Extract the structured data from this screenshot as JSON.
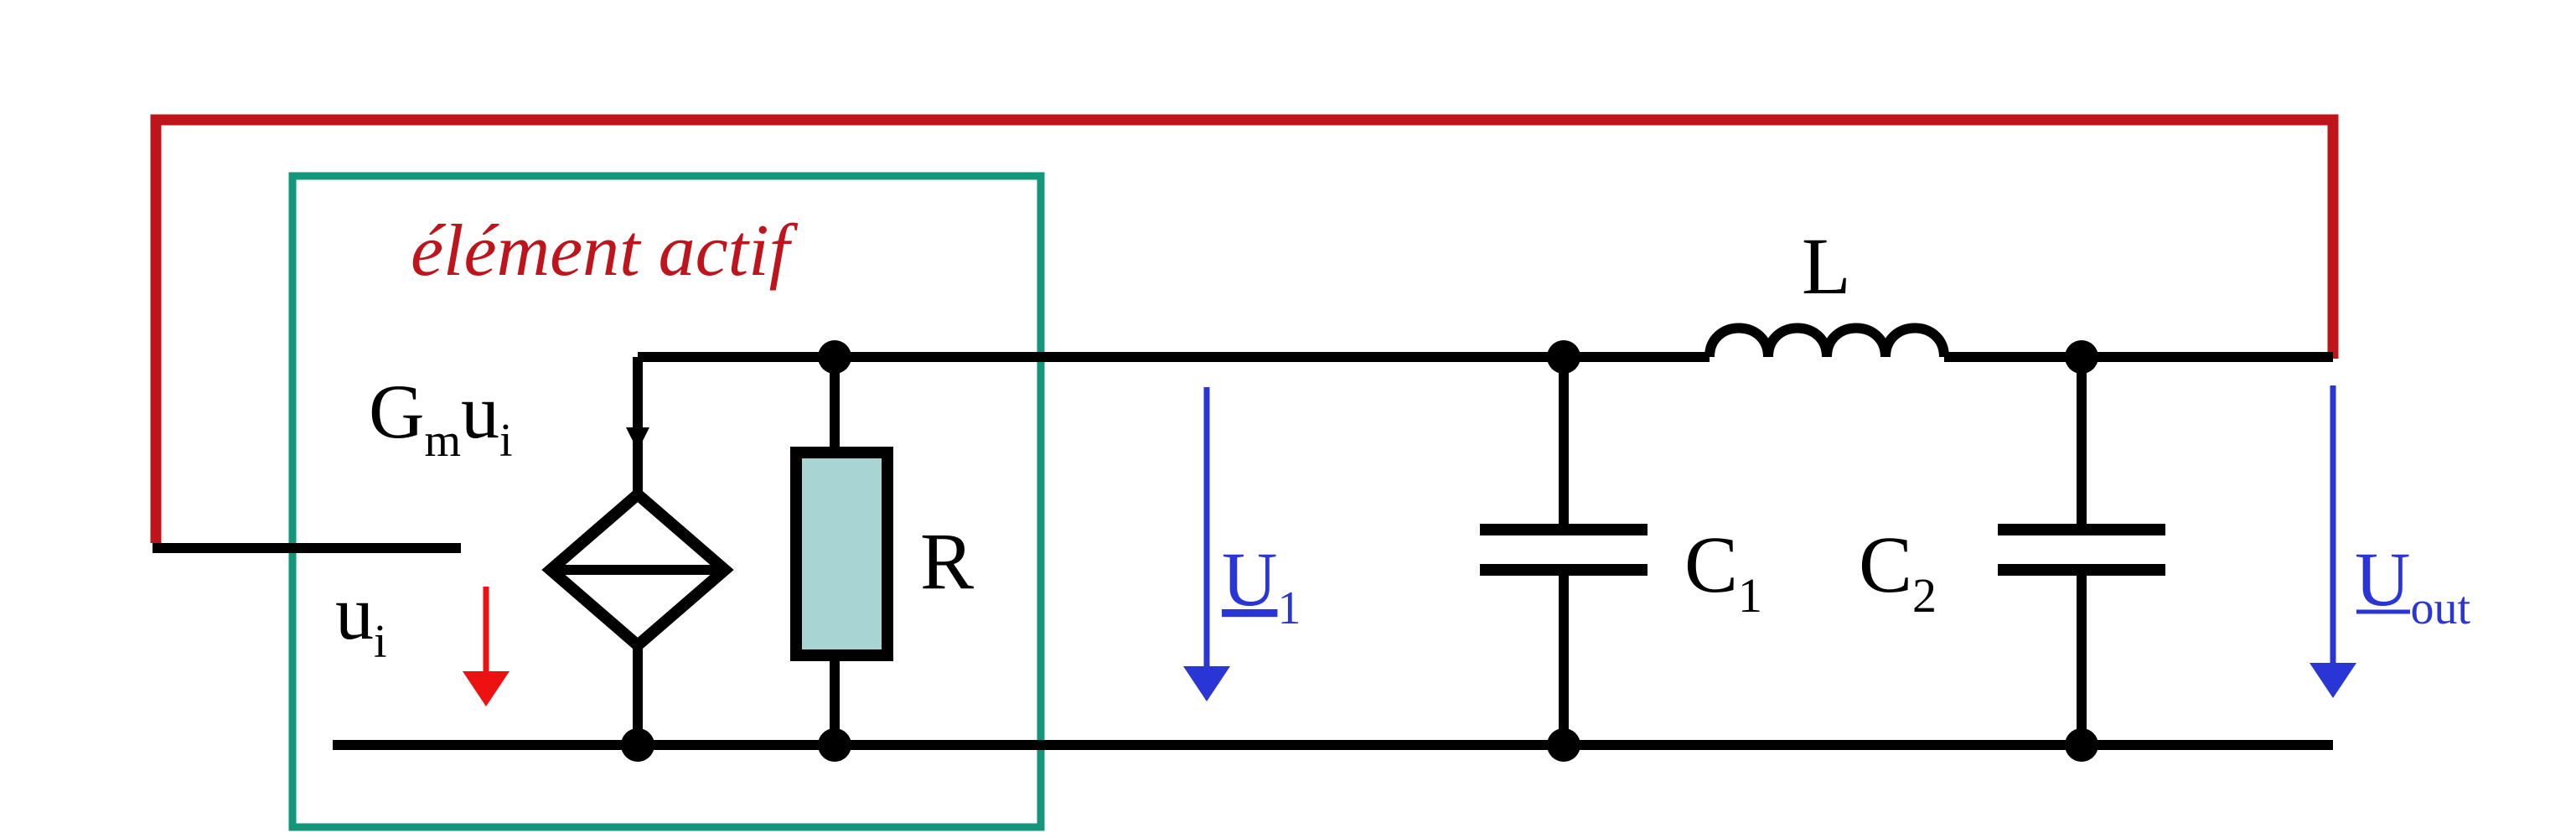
{
  "diagram": {
    "title_label": "élément actif",
    "labels": {
      "current_source": {
        "base": "G",
        "sub1": "m",
        "mid": "u",
        "sub2": "i"
      },
      "input_voltage": {
        "base": "u",
        "sub": "i"
      },
      "resistor": "R",
      "u1": {
        "base": "U",
        "sub": "1"
      },
      "c1": {
        "base": "C",
        "sub": "1"
      },
      "c2": {
        "base": "C",
        "sub": "2"
      },
      "inductor": "L",
      "uout": {
        "base": "U",
        "sub": "out"
      }
    },
    "components": [
      {
        "id": "current-source",
        "type": "dependent-current-source"
      },
      {
        "id": "resistor",
        "type": "resistor"
      },
      {
        "id": "c1",
        "type": "capacitor"
      },
      {
        "id": "inductor",
        "type": "inductor"
      },
      {
        "id": "c2",
        "type": "capacitor"
      }
    ],
    "colors": {
      "wire": "#000000",
      "feedback": "#c0141c",
      "active_box": "#14967a",
      "resistor_fill": "#a8d4d4",
      "voltage_arrow": "#2a35d6",
      "input_arrow": "#ee1111",
      "title": "#c0141c"
    }
  }
}
